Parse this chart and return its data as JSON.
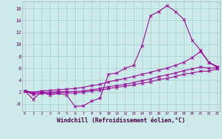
{
  "bg_color": "#cceaea",
  "grid_color": "#aad0d0",
  "line_color": "#990099",
  "xlabel": "Windchill (Refroidissement éolien,°C)",
  "xlabel_fontsize": 6.0,
  "yticks": [
    0,
    2,
    4,
    6,
    8,
    10,
    12,
    14,
    16
  ],
  "ytick_labels": [
    "-0",
    "2",
    "4",
    "6",
    "8",
    "10",
    "12",
    "14",
    "16"
  ],
  "xticks": [
    0,
    1,
    2,
    3,
    4,
    5,
    6,
    7,
    8,
    9,
    10,
    11,
    12,
    13,
    14,
    15,
    16,
    17,
    18,
    19,
    20,
    21,
    22,
    23
  ],
  "xlim": [
    -0.3,
    23.3
  ],
  "ylim": [
    -1.2,
    17.2
  ],
  "series": [
    {
      "x": [
        0,
        1,
        2,
        3,
        4,
        5,
        6,
        7,
        8,
        9,
        10,
        11,
        12,
        13,
        14,
        15,
        16,
        17,
        18,
        19,
        20,
        21,
        22,
        23
      ],
      "y": [
        2.2,
        0.8,
        2.0,
        1.5,
        1.8,
        1.5,
        -0.4,
        -0.3,
        0.5,
        1.0,
        5.0,
        5.2,
        6.0,
        6.5,
        9.8,
        14.8,
        15.5,
        16.5,
        15.5,
        14.2,
        10.7,
        9.0,
        7.0,
        6.1
      ]
    },
    {
      "x": [
        0,
        1,
        2,
        3,
        4,
        5,
        6,
        7,
        8,
        9,
        10,
        11,
        12,
        13,
        14,
        15,
        16,
        17,
        18,
        19,
        20,
        21,
        22,
        23
      ],
      "y": [
        2.2,
        2.0,
        2.2,
        2.3,
        2.4,
        2.5,
        2.6,
        2.8,
        3.1,
        3.3,
        3.7,
        4.0,
        4.3,
        4.6,
        5.0,
        5.3,
        5.7,
        6.0,
        6.5,
        7.0,
        7.8,
        8.8,
        7.0,
        6.3
      ]
    },
    {
      "x": [
        0,
        1,
        2,
        3,
        4,
        5,
        6,
        7,
        8,
        9,
        10,
        11,
        12,
        13,
        14,
        15,
        16,
        17,
        18,
        19,
        20,
        21,
        22,
        23
      ],
      "y": [
        2.2,
        1.8,
        2.0,
        2.0,
        2.1,
        2.1,
        2.1,
        2.2,
        2.4,
        2.6,
        2.9,
        3.1,
        3.3,
        3.6,
        3.9,
        4.2,
        4.6,
        4.9,
        5.2,
        5.6,
        5.9,
        6.2,
        6.0,
        6.1
      ]
    },
    {
      "x": [
        0,
        1,
        2,
        3,
        4,
        5,
        6,
        7,
        8,
        9,
        10,
        11,
        12,
        13,
        14,
        15,
        16,
        17,
        18,
        19,
        20,
        21,
        22,
        23
      ],
      "y": [
        2.2,
        1.6,
        1.8,
        1.8,
        1.9,
        1.9,
        1.8,
        2.0,
        2.2,
        2.3,
        2.6,
        2.8,
        3.0,
        3.2,
        3.5,
        3.7,
        4.1,
        4.3,
        4.6,
        5.0,
        5.2,
        5.5,
        5.5,
        5.9
      ]
    }
  ]
}
